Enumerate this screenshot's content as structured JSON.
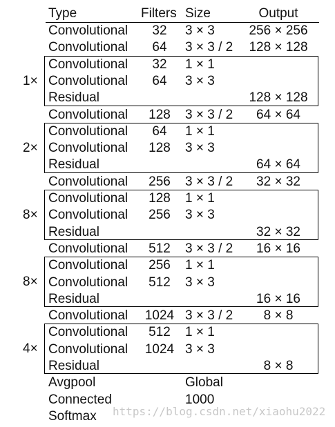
{
  "header": {
    "type": "Type",
    "filters": "Filters",
    "size": "Size",
    "output": "Output"
  },
  "rows": [
    {
      "type": "Convolutional",
      "filters": "32",
      "size": "3 × 3",
      "output": "256 × 256"
    },
    {
      "type": "Convolutional",
      "filters": "64",
      "size": "3 × 3 / 2",
      "output": "128 × 128"
    },
    {
      "type": "Convolutional",
      "filters": "32",
      "size": "1 × 1",
      "output": ""
    },
    {
      "type": "Convolutional",
      "filters": "64",
      "size": "3 × 3",
      "output": ""
    },
    {
      "type": "Residual",
      "filters": "",
      "size": "",
      "output": "128 × 128"
    },
    {
      "type": "Convolutional",
      "filters": "128",
      "size": "3 × 3 / 2",
      "output": "64 × 64"
    },
    {
      "type": "Convolutional",
      "filters": "64",
      "size": "1 × 1",
      "output": ""
    },
    {
      "type": "Convolutional",
      "filters": "128",
      "size": "3 × 3",
      "output": ""
    },
    {
      "type": "Residual",
      "filters": "",
      "size": "",
      "output": "64 × 64"
    },
    {
      "type": "Convolutional",
      "filters": "256",
      "size": "3 × 3 / 2",
      "output": "32 × 32"
    },
    {
      "type": "Convolutional",
      "filters": "128",
      "size": "1 × 1",
      "output": ""
    },
    {
      "type": "Convolutional",
      "filters": "256",
      "size": "3 × 3",
      "output": ""
    },
    {
      "type": "Residual",
      "filters": "",
      "size": "",
      "output": "32 × 32"
    },
    {
      "type": "Convolutional",
      "filters": "512",
      "size": "3 × 3 / 2",
      "output": "16 × 16"
    },
    {
      "type": "Convolutional",
      "filters": "256",
      "size": "1 × 1",
      "output": ""
    },
    {
      "type": "Convolutional",
      "filters": "512",
      "size": "3 × 3",
      "output": ""
    },
    {
      "type": "Residual",
      "filters": "",
      "size": "",
      "output": "16 × 16"
    },
    {
      "type": "Convolutional",
      "filters": "1024",
      "size": "3 × 3 / 2",
      "output": "8 × 8"
    },
    {
      "type": "Convolutional",
      "filters": "512",
      "size": "1 × 1",
      "output": ""
    },
    {
      "type": "Convolutional",
      "filters": "1024",
      "size": "3 × 3",
      "output": ""
    },
    {
      "type": "Residual",
      "filters": "",
      "size": "",
      "output": "8 × 8"
    },
    {
      "type": "Avgpool",
      "filters": "",
      "size": "Global",
      "output": ""
    },
    {
      "type": "Connected",
      "filters": "",
      "size": "1000",
      "output": ""
    },
    {
      "type": "Softmax",
      "filters": "",
      "size": "",
      "output": ""
    }
  ],
  "blocks": [
    {
      "multiplier": "1×"
    },
    {
      "multiplier": "2×"
    },
    {
      "multiplier": "8×"
    },
    {
      "multiplier": "8×"
    },
    {
      "multiplier": "4×"
    }
  ],
  "watermark": "https://blog.csdn.net/xiaohu2022"
}
